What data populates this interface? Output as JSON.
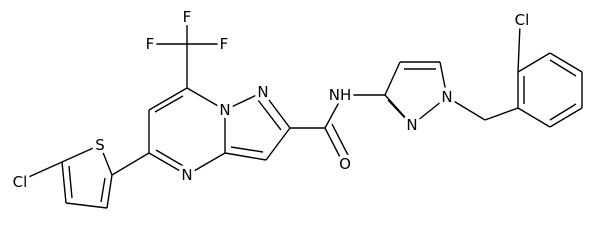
{
  "atoms": [
    {
      "label": "F"
    },
    {
      "label": "F"
    },
    {
      "label": "F"
    },
    {
      "label": "N"
    },
    {
      "label": "N"
    },
    {
      "label": "N"
    },
    {
      "label": "O"
    },
    {
      "label": "NH"
    },
    {
      "label": "N"
    },
    {
      "label": "N"
    },
    {
      "label": "Cl"
    },
    {
      "label": "S"
    },
    {
      "label": "Cl"
    }
  ]
}
